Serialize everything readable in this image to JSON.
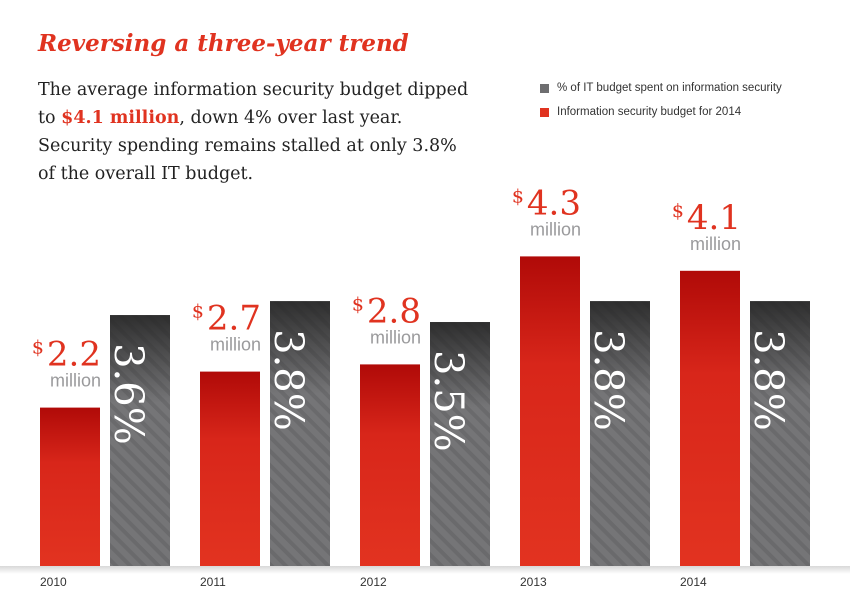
{
  "title": "Reversing a three-year trend",
  "description": {
    "before": "The average information security budget dipped to ",
    "highlight": "$4.1 million",
    "after": ", down 4% over last year. Security spending remains stalled at only 3.8% of the overall IT budget."
  },
  "colors": {
    "red": "#e03320",
    "gray": "#6e6e70"
  },
  "chart_data": {
    "type": "bar",
    "title": "Reversing a three-year trend",
    "categories": [
      "2010",
      "2011",
      "2012",
      "2013",
      "2014"
    ],
    "series": [
      {
        "name": "Information security budget for 2014",
        "unit": "$ million",
        "values": [
          2.2,
          2.7,
          2.8,
          4.3,
          4.1
        ],
        "labels": [
          "2.2",
          "2.7",
          "2.8",
          "4.3",
          "4.1"
        ],
        "prefix": "$",
        "suffix": "million"
      },
      {
        "name": "% of IT budget spent on information security",
        "unit": "%",
        "values": [
          3.6,
          3.8,
          3.5,
          3.8,
          3.8
        ],
        "labels": [
          "3.6%",
          "3.8%",
          "3.5%",
          "3.8%",
          "3.8%"
        ]
      }
    ],
    "legend": "top-right",
    "grid": false
  }
}
